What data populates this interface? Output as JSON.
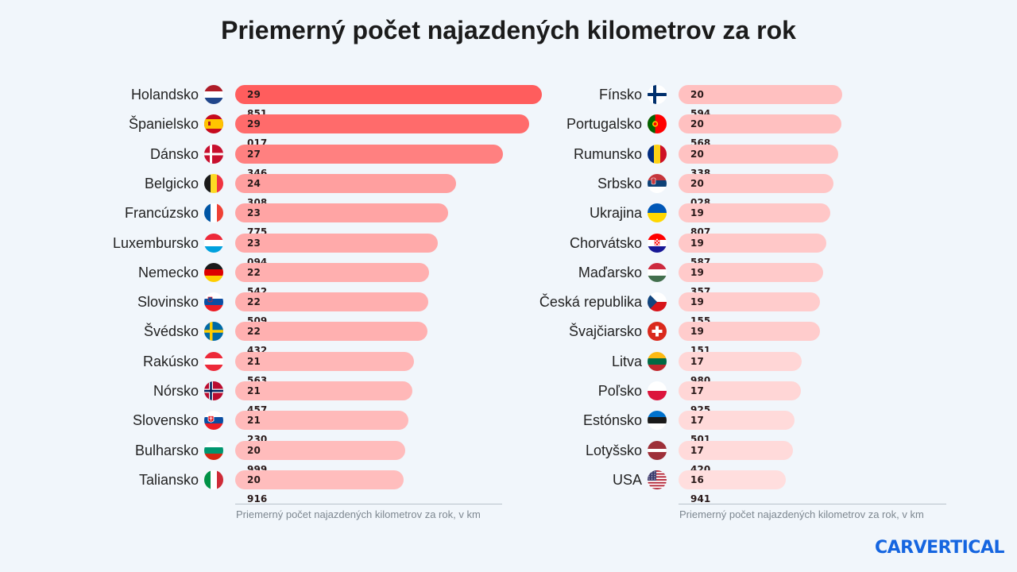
{
  "title": "Priemerný počet najazdených kilometrov za rok",
  "brand": "CARVERTICAL",
  "chart_data": [
    {
      "type": "bar",
      "orientation": "horizontal",
      "title": "Priemerný počet najazdených kilometrov za rok",
      "xlabel": "Priemerný počet najazdených kilometrov za rok, v km",
      "categories": [
        "Holandsko",
        "Španielsko",
        "Dánsko",
        "Belgicko",
        "Francúzsko",
        "Luxembursko",
        "Nemecko",
        "Slovinsko",
        "Švédsko",
        "Rakúsko",
        "Nórsko",
        "Slovensko",
        "Bulharsko",
        "Taliansko"
      ],
      "values": [
        29851,
        29017,
        27346,
        24308,
        23775,
        23094,
        22542,
        22509,
        22432,
        21563,
        21457,
        21230,
        20999,
        20916
      ],
      "value_labels": [
        "29 851",
        "29 017",
        "27 346",
        "24 308",
        "23 775",
        "23 094",
        "22 542",
        "22 509",
        "22 432",
        "21 563",
        "21 457",
        "21 230",
        "20 999",
        "20 916"
      ],
      "flags": [
        "nl",
        "es",
        "dk",
        "be",
        "fr",
        "lu",
        "de",
        "si",
        "se",
        "at",
        "no",
        "sk",
        "bg",
        "it"
      ],
      "color_max": "#ff5d5d",
      "color_min": "#ffdede"
    },
    {
      "type": "bar",
      "orientation": "horizontal",
      "xlabel": "Priemerný počet najazdených kilometrov za rok, v km",
      "categories": [
        "Fínsko",
        "Portugalsko",
        "Rumunsko",
        "Srbsko",
        "Ukrajina",
        "Chorvátsko",
        "Maďarsko",
        "Česká republika",
        "Švajčiarsko",
        "Litva",
        "Poľsko",
        "Estónsko",
        "Lotyšsko",
        "USA"
      ],
      "values": [
        20594,
        20568,
        20338,
        20028,
        19807,
        19587,
        19357,
        19155,
        19151,
        17980,
        17925,
        17501,
        17420,
        16941
      ],
      "value_labels": [
        "20 594",
        "20 568",
        "20 338",
        "20 028",
        "19 807",
        "19 587",
        "19 357",
        "19 155",
        "19 151",
        "17 980",
        "17 925",
        "17 501",
        "17 420",
        "16 941"
      ],
      "flags": [
        "fi",
        "pt",
        "ro",
        "rs",
        "ua",
        "hr",
        "hu",
        "cz",
        "ch",
        "lt",
        "pl",
        "ee",
        "lv",
        "us"
      ],
      "color_max": "#ff5d5d",
      "color_min": "#ffdede"
    }
  ]
}
